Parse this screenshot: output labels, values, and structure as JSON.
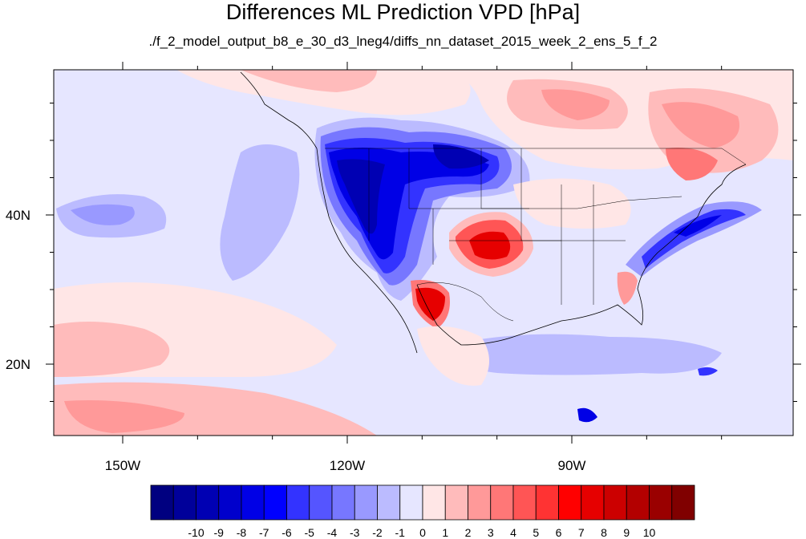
{
  "title": "Differences ML Prediction VPD [hPa]",
  "subtitle": "./f_2_model_output_b8_e_30_d3_lneg4/diffs_nn_dataset_2015_week_2_ens_5_f_2",
  "x_ticks": [
    {
      "value": -150,
      "label": "150W"
    },
    {
      "value": -120,
      "label": "120W"
    },
    {
      "value": -90,
      "label": "90W"
    }
  ],
  "y_ticks": [
    {
      "value": 40,
      "label": "40N"
    },
    {
      "value": 20,
      "label": "20N"
    }
  ],
  "colorbar": {
    "colors": [
      "#000080",
      "#00009a",
      "#0000b3",
      "#0000cc",
      "#0000e6",
      "#0000ff",
      "#3333ff",
      "#5555ff",
      "#7777ff",
      "#9999ff",
      "#bbbbff",
      "#e6e6ff",
      "#ffe6e6",
      "#ffbbbb",
      "#ff9999",
      "#ff7777",
      "#ff5555",
      "#ff3333",
      "#ff0000",
      "#e60000",
      "#cc0000",
      "#b30000",
      "#9a0000",
      "#800000"
    ],
    "labels": [
      "-10",
      "-9",
      "-8",
      "-7",
      "-6",
      "-5",
      "-4",
      "-3",
      "-2",
      "-1",
      "0",
      "1",
      "2",
      "3",
      "4",
      "5",
      "6",
      "7",
      "8",
      "9",
      "10"
    ]
  }
}
